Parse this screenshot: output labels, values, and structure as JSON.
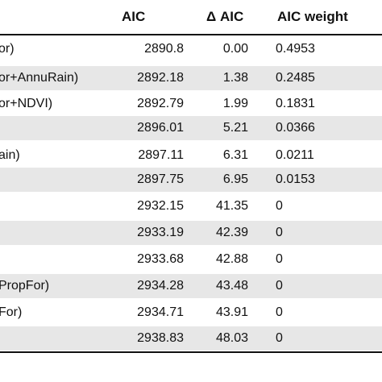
{
  "table": {
    "headers": {
      "model": "",
      "aic": "AIC",
      "delta_aic": "Δ AIC",
      "aic_weight": "AIC weight"
    },
    "rows": [
      {
        "model": "or)",
        "aic": "2890.8",
        "delta_aic": "0.00",
        "aic_weight": "0.4953",
        "shaded": false
      },
      {
        "model": "or+AnnuRain)",
        "aic": "2892.18",
        "delta_aic": "1.38",
        "aic_weight": "0.2485",
        "shaded": true
      },
      {
        "model": "or+NDVI)",
        "aic": "2892.79",
        "delta_aic": "1.99",
        "aic_weight": "0.1831",
        "shaded": false
      },
      {
        "model": "",
        "aic": "2896.01",
        "delta_aic": "5.21",
        "aic_weight": "0.0366",
        "shaded": true
      },
      {
        "model": "ain)",
        "aic": "2897.11",
        "delta_aic": "6.31",
        "aic_weight": "0.0211",
        "shaded": false
      },
      {
        "model": "",
        "aic": "2897.75",
        "delta_aic": "6.95",
        "aic_weight": "0.0153",
        "shaded": true
      },
      {
        "model": "",
        "aic": "2932.15",
        "delta_aic": "41.35",
        "aic_weight": "0",
        "shaded": false
      },
      {
        "model": "",
        "aic": "2933.19",
        "delta_aic": "42.39",
        "aic_weight": "0",
        "shaded": true
      },
      {
        "model": "",
        "aic": "2933.68",
        "delta_aic": "42.88",
        "aic_weight": "0",
        "shaded": false
      },
      {
        "model": "PropFor)",
        "aic": "2934.28",
        "delta_aic": "43.48",
        "aic_weight": "0",
        "shaded": true
      },
      {
        "model": "For)",
        "aic": "2934.71",
        "delta_aic": "43.91",
        "aic_weight": "0",
        "shaded": false
      },
      {
        "model": "",
        "aic": "2938.83",
        "delta_aic": "48.03",
        "aic_weight": "0",
        "shaded": true
      }
    ]
  }
}
